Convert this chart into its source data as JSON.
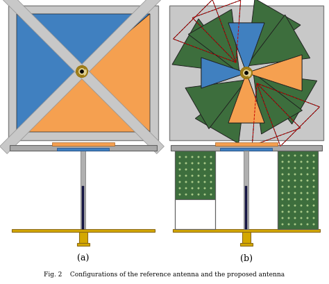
{
  "fig_width": 4.74,
  "fig_height": 4.09,
  "dpi": 100,
  "bg_color": "#ffffff",
  "gray_bg": "#c8c8c8",
  "gray_panel": "#c0c0c0",
  "blue": "#4080c0",
  "orange": "#f5a050",
  "green": "#3d6e3d",
  "dark_navy": "#1a1a4a",
  "gold": "#d4a800",
  "silver": "#a8a8a8",
  "caption": "Fig. 2    Configurations of the reference antenna and the proposed antenna",
  "label_a": "(a)",
  "label_b": "(b)"
}
